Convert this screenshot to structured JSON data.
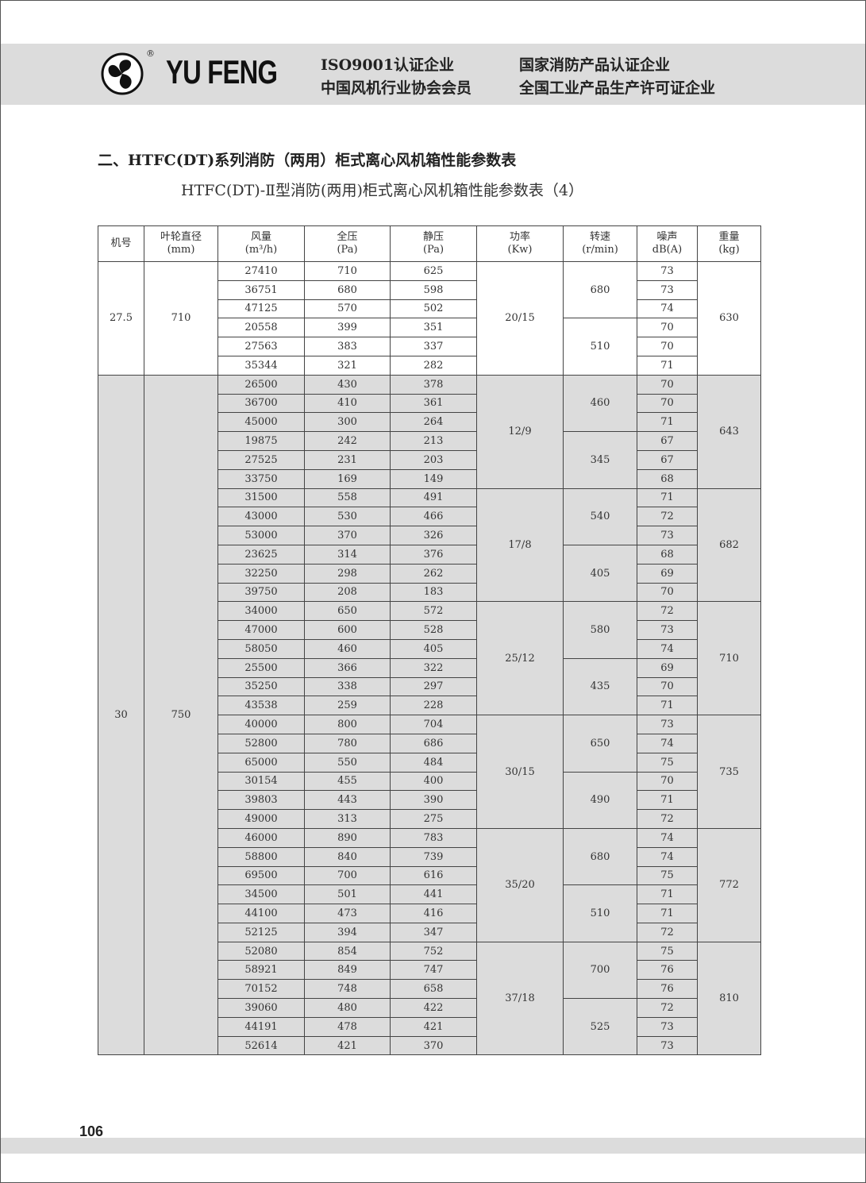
{
  "header": {
    "brand": "YU FENG",
    "registered": "®",
    "certs": [
      "ISO9001认证企业",
      "国家消防产品认证企业",
      "中国风机行业协会会员",
      "全国工业产品生产许可证企业"
    ]
  },
  "section_title": "二、HTFC(DT)系列消防（两用）柜式离心风机箱性能参数表",
  "table_title": "HTFC(DT)-Ⅱ型消防(两用)柜式离心风机箱性能参数表（4）",
  "table": {
    "headers": [
      [
        "机号",
        ""
      ],
      [
        "叶轮直径",
        "(mm)"
      ],
      [
        "风量",
        "(m³/h)"
      ],
      [
        "全压",
        "(Pa)"
      ],
      [
        "静压",
        "(Pa)"
      ],
      [
        "功率",
        "(Kw)"
      ],
      [
        "转速",
        "(r/min)"
      ],
      [
        "噪声",
        "dB(A)"
      ],
      [
        "重量",
        "(kg)"
      ]
    ],
    "models": [
      {
        "model": "27.5",
        "diameter": "710",
        "blocks": [
          {
            "power": "20/15",
            "weight": "630",
            "speeds": [
              {
                "rpm": "680",
                "rows": [
                  [
                    "27410",
                    "710",
                    "625",
                    "73"
                  ],
                  [
                    "36751",
                    "680",
                    "598",
                    "73"
                  ],
                  [
                    "47125",
                    "570",
                    "502",
                    "74"
                  ]
                ]
              },
              {
                "rpm": "510",
                "rows": [
                  [
                    "20558",
                    "399",
                    "351",
                    "70"
                  ],
                  [
                    "27563",
                    "383",
                    "337",
                    "70"
                  ],
                  [
                    "35344",
                    "321",
                    "282",
                    "71"
                  ]
                ]
              }
            ]
          }
        ]
      },
      {
        "model": "30",
        "diameter": "750",
        "blocks": [
          {
            "power": "12/9",
            "weight": "643",
            "speeds": [
              {
                "rpm": "460",
                "rows": [
                  [
                    "26500",
                    "430",
                    "378",
                    "70"
                  ],
                  [
                    "36700",
                    "410",
                    "361",
                    "70"
                  ],
                  [
                    "45000",
                    "300",
                    "264",
                    "71"
                  ]
                ]
              },
              {
                "rpm": "345",
                "rows": [
                  [
                    "19875",
                    "242",
                    "213",
                    "67"
                  ],
                  [
                    "27525",
                    "231",
                    "203",
                    "67"
                  ],
                  [
                    "33750",
                    "169",
                    "149",
                    "68"
                  ]
                ]
              }
            ]
          },
          {
            "power": "17/8",
            "weight": "682",
            "speeds": [
              {
                "rpm": "540",
                "rows": [
                  [
                    "31500",
                    "558",
                    "491",
                    "71"
                  ],
                  [
                    "43000",
                    "530",
                    "466",
                    "72"
                  ],
                  [
                    "53000",
                    "370",
                    "326",
                    "73"
                  ]
                ]
              },
              {
                "rpm": "405",
                "rows": [
                  [
                    "23625",
                    "314",
                    "376",
                    "68"
                  ],
                  [
                    "32250",
                    "298",
                    "262",
                    "69"
                  ],
                  [
                    "39750",
                    "208",
                    "183",
                    "70"
                  ]
                ]
              }
            ]
          },
          {
            "power": "25/12",
            "weight": "710",
            "speeds": [
              {
                "rpm": "580",
                "rows": [
                  [
                    "34000",
                    "650",
                    "572",
                    "72"
                  ],
                  [
                    "47000",
                    "600",
                    "528",
                    "73"
                  ],
                  [
                    "58050",
                    "460",
                    "405",
                    "74"
                  ]
                ]
              },
              {
                "rpm": "435",
                "rows": [
                  [
                    "25500",
                    "366",
                    "322",
                    "69"
                  ],
                  [
                    "35250",
                    "338",
                    "297",
                    "70"
                  ],
                  [
                    "43538",
                    "259",
                    "228",
                    "71"
                  ]
                ]
              }
            ]
          },
          {
            "power": "30/15",
            "weight": "735",
            "speeds": [
              {
                "rpm": "650",
                "rows": [
                  [
                    "40000",
                    "800",
                    "704",
                    "73"
                  ],
                  [
                    "52800",
                    "780",
                    "686",
                    "74"
                  ],
                  [
                    "65000",
                    "550",
                    "484",
                    "75"
                  ]
                ]
              },
              {
                "rpm": "490",
                "rows": [
                  [
                    "30154",
                    "455",
                    "400",
                    "70"
                  ],
                  [
                    "39803",
                    "443",
                    "390",
                    "71"
                  ],
                  [
                    "49000",
                    "313",
                    "275",
                    "72"
                  ]
                ]
              }
            ]
          },
          {
            "power": "35/20",
            "weight": "772",
            "speeds": [
              {
                "rpm": "680",
                "rows": [
                  [
                    "46000",
                    "890",
                    "783",
                    "74"
                  ],
                  [
                    "58800",
                    "840",
                    "739",
                    "74"
                  ],
                  [
                    "69500",
                    "700",
                    "616",
                    "75"
                  ]
                ]
              },
              {
                "rpm": "510",
                "rows": [
                  [
                    "34500",
                    "501",
                    "441",
                    "71"
                  ],
                  [
                    "44100",
                    "473",
                    "416",
                    "71"
                  ],
                  [
                    "52125",
                    "394",
                    "347",
                    "72"
                  ]
                ]
              }
            ]
          },
          {
            "power": "37/18",
            "weight": "810",
            "speeds": [
              {
                "rpm": "700",
                "rows": [
                  [
                    "52080",
                    "854",
                    "752",
                    "75"
                  ],
                  [
                    "58921",
                    "849",
                    "747",
                    "76"
                  ],
                  [
                    "70152",
                    "748",
                    "658",
                    "76"
                  ]
                ]
              },
              {
                "rpm": "525",
                "rows": [
                  [
                    "39060",
                    "480",
                    "422",
                    "72"
                  ],
                  [
                    "44191",
                    "478",
                    "421",
                    "73"
                  ],
                  [
                    "52614",
                    "421",
                    "370",
                    "73"
                  ]
                ]
              }
            ]
          }
        ]
      }
    ]
  },
  "page_number": "106",
  "colors": {
    "band": "#dcdcdc",
    "shaded_rows": "#dcdcdc"
  }
}
